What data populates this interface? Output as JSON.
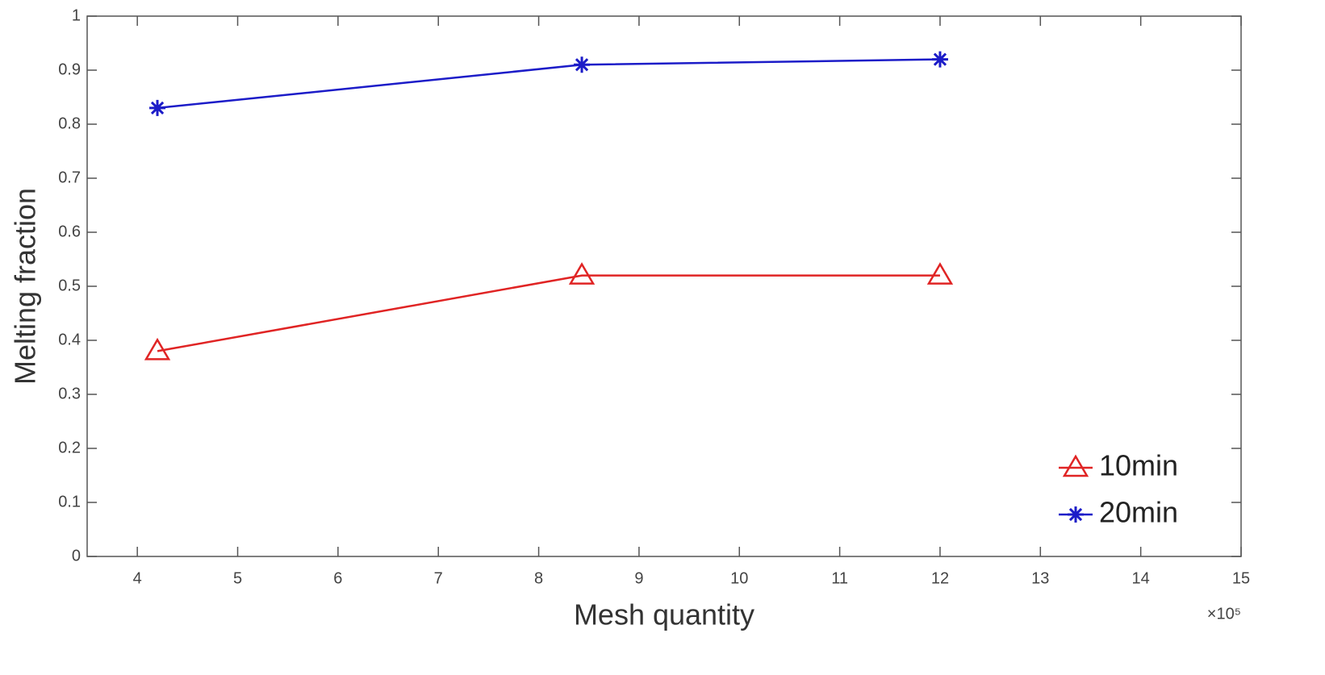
{
  "chart_data": {
    "type": "line",
    "x_label": "Mesh quantity",
    "y_label": "Melting fraction",
    "x_exponent_label": "×10⁵",
    "x": [
      4.2,
      8.43,
      12
    ],
    "series": [
      {
        "name": "10min",
        "color": "#e02424",
        "marker": "triangle",
        "values": [
          0.38,
          0.52,
          0.52
        ]
      },
      {
        "name": "20min",
        "color": "#1c1cc8",
        "marker": "star",
        "values": [
          0.83,
          0.91,
          0.92
        ]
      }
    ],
    "xlim": [
      3.5,
      15
    ],
    "xticks": [
      4,
      5,
      6,
      7,
      8,
      9,
      10,
      11,
      12,
      13,
      14,
      15
    ],
    "ylim": [
      0,
      1
    ],
    "yticks": [
      0,
      0.1,
      0.2,
      0.3,
      0.4,
      0.5,
      0.6,
      0.7,
      0.8,
      0.9,
      1
    ],
    "legend": "lower right",
    "grid": false
  }
}
